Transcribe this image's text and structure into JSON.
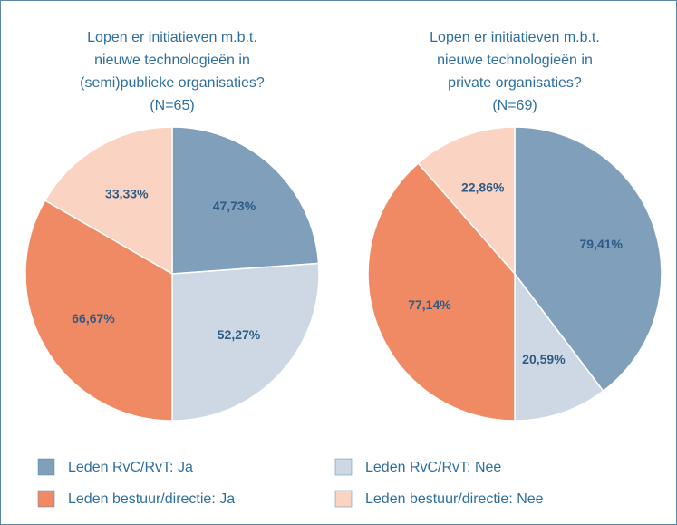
{
  "chart_data": [
    {
      "type": "pie",
      "title": [
        "Lopen er initiatieven m.b.t.",
        "nieuwe technologieën in",
        "(semi)publieke organisaties?",
        "(N=65)"
      ],
      "values": [
        47.73,
        52.27,
        66.67,
        33.33
      ],
      "value_labels": [
        "47,73%",
        "52,27%",
        "66,67%",
        "33,33%"
      ]
    },
    {
      "type": "pie",
      "title": [
        "Lopen er initiatieven m.b.t.",
        "nieuwe technologieën in",
        "private organisaties?",
        "(N=69)"
      ],
      "values": [
        79.41,
        20.59,
        77.14,
        22.86
      ],
      "value_labels": [
        "79,41%",
        "20,59%",
        "77,14%",
        "22,86%"
      ]
    }
  ],
  "legend": {
    "labels": [
      "Leden RvC/RvT: Ja",
      "Leden RvC/RvT: Nee",
      "Leden bestuur/directie: Ja",
      "Leden bestuur/directie: Nee"
    ],
    "colors": [
      "#7f9fba",
      "#cdd8e4",
      "#f08a65",
      "#fbd3c3"
    ]
  }
}
